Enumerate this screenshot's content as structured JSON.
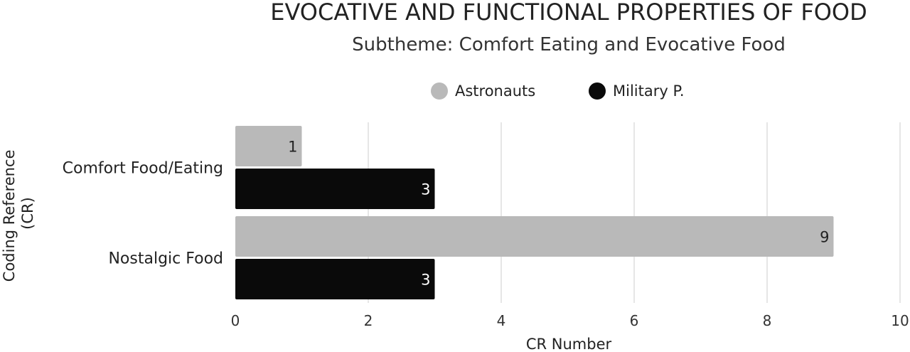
{
  "chart_data": {
    "type": "bar",
    "orientation": "horizontal",
    "title": "EVOCATIVE AND FUNCTIONAL PROPERTIES OF FOOD",
    "subtitle": "Subtheme: Comfort Eating and Evocative Food",
    "xlabel": "CR Number",
    "ylabel": "Coding Reference (CR)",
    "categories": [
      "Comfort Food/Eating",
      "Nostalgic Food"
    ],
    "series": [
      {
        "name": "Astronauts",
        "color": "#b9b9b9",
        "label_color": "#222222",
        "values": [
          1,
          9
        ]
      },
      {
        "name": "Military P.",
        "color": "#0a0a0a",
        "label_color": "#ffffff",
        "values": [
          3,
          3
        ]
      }
    ],
    "xlim": [
      0,
      10
    ],
    "xticks": [
      0,
      2,
      4,
      6,
      8,
      10
    ],
    "grid": true,
    "legend": "top-center"
  }
}
